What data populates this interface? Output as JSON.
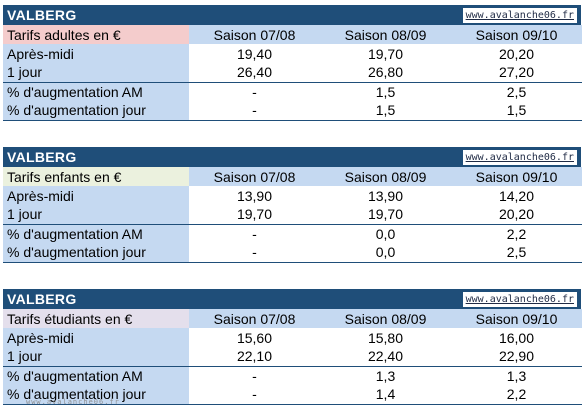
{
  "site": "www.avalanche06.fr",
  "columns": [
    "Saison 07/08",
    "Saison 08/09",
    "Saison 09/10"
  ],
  "sections": [
    {
      "title": "VALBERG",
      "tariff_label": "Tarifs adultes en €",
      "tariff_color": "#f4cccc",
      "rows": [
        {
          "label": "Après-midi",
          "values": [
            "19,40",
            "19,70",
            "20,20"
          ]
        },
        {
          "label": "1 jour",
          "values": [
            "26,40",
            "26,80",
            "27,20"
          ]
        },
        {
          "label": "% d'augmentation AM",
          "values": [
            "-",
            "1,5",
            "2,5"
          ]
        },
        {
          "label": "% d'augmentation jour",
          "values": [
            "-",
            "1,5",
            "1,5"
          ]
        }
      ]
    },
    {
      "title": "VALBERG",
      "tariff_label": "Tarifs enfants en €",
      "tariff_color": "#ebf1de",
      "rows": [
        {
          "label": "Après-midi",
          "values": [
            "13,90",
            "13,90",
            "14,20"
          ]
        },
        {
          "label": "1 jour",
          "values": [
            "19,70",
            "19,70",
            "20,20"
          ]
        },
        {
          "label": "% d'augmentation AM",
          "values": [
            "-",
            "0,0",
            "2,2"
          ]
        },
        {
          "label": "% d'augmentation jour",
          "values": [
            "-",
            "0,0",
            "2,5"
          ]
        }
      ]
    },
    {
      "title": "VALBERG",
      "tariff_label": "Tarifs étudiants en €",
      "tariff_color": "#e4dfec",
      "rows": [
        {
          "label": "Après-midi",
          "values": [
            "15,60",
            "15,80",
            "16,00"
          ]
        },
        {
          "label": "1 jour",
          "values": [
            "22,10",
            "22,40",
            "22,90"
          ]
        },
        {
          "label": "% d'augmentation AM",
          "values": [
            "-",
            "1,3",
            "1,3"
          ]
        },
        {
          "label": "% d'augmentation jour",
          "values": [
            "-",
            "1,4",
            "2,2"
          ]
        }
      ]
    }
  ],
  "watermark": "www.avalanche06.fr"
}
